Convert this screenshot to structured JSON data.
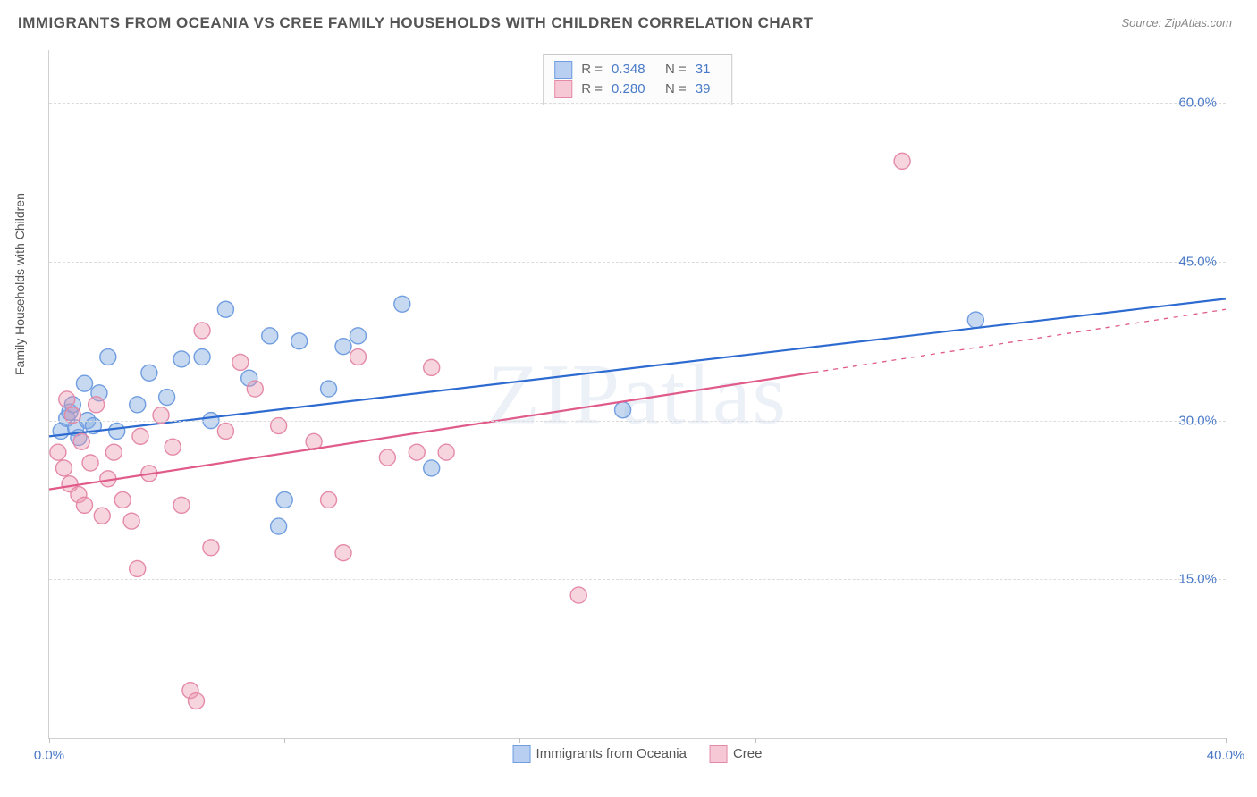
{
  "title": "IMMIGRANTS FROM OCEANIA VS CREE FAMILY HOUSEHOLDS WITH CHILDREN CORRELATION CHART",
  "source_label": "Source: ZipAtlas.com",
  "ylabel": "Family Households with Children",
  "watermark": "ZIPatlas",
  "chart": {
    "type": "scatter",
    "background_color": "#ffffff",
    "grid_color": "#dcdcdc",
    "axis_color": "#d0d0d0",
    "tick_label_color": "#4a7ac7",
    "title_fontsize": 17,
    "label_fontsize": 14,
    "tick_fontsize": 15,
    "xlim": [
      0,
      40
    ],
    "ylim": [
      0,
      65
    ],
    "xticks": [
      0,
      8,
      16,
      24,
      32,
      40
    ],
    "xtick_labels": [
      "0.0%",
      "",
      "",
      "",
      "",
      "40.0%"
    ],
    "yticks": [
      15,
      30,
      45,
      60
    ],
    "ytick_labels": [
      "15.0%",
      "30.0%",
      "45.0%",
      "60.0%"
    ],
    "series": [
      {
        "key": "oceania",
        "label": "Immigrants from Oceania",
        "marker_fill": "rgba(130,170,225,0.45)",
        "marker_stroke": "#6f9de0",
        "marker_radius": 9,
        "line_color": "#2e6bd1",
        "line_width": 2.2,
        "swatch_fill": "#b8cff1",
        "swatch_border": "#6f9de0",
        "r_value": "0.348",
        "n_value": "31",
        "trend": {
          "x1": 0,
          "y1": 28.5,
          "x2": 40,
          "y2": 41.5
        },
        "trend_dash_from": 40,
        "points": [
          [
            0.4,
            29.0
          ],
          [
            0.6,
            30.2
          ],
          [
            0.7,
            30.8
          ],
          [
            0.8,
            31.5
          ],
          [
            0.9,
            29.3
          ],
          [
            1.0,
            28.4
          ],
          [
            1.2,
            33.5
          ],
          [
            1.3,
            30.0
          ],
          [
            1.5,
            29.5
          ],
          [
            1.7,
            32.6
          ],
          [
            2.0,
            36.0
          ],
          [
            2.3,
            29.0
          ],
          [
            3.0,
            31.5
          ],
          [
            3.4,
            34.5
          ],
          [
            4.0,
            32.2
          ],
          [
            4.5,
            35.8
          ],
          [
            5.2,
            36.0
          ],
          [
            5.5,
            30.0
          ],
          [
            6.0,
            40.5
          ],
          [
            6.8,
            34.0
          ],
          [
            7.5,
            38.0
          ],
          [
            7.8,
            20.0
          ],
          [
            8.0,
            22.5
          ],
          [
            8.5,
            37.5
          ],
          [
            9.5,
            33.0
          ],
          [
            10.0,
            37.0
          ],
          [
            10.5,
            38.0
          ],
          [
            12.0,
            41.0
          ],
          [
            13.0,
            25.5
          ],
          [
            19.5,
            31.0
          ],
          [
            31.5,
            39.5
          ]
        ]
      },
      {
        "key": "cree",
        "label": "Cree",
        "marker_fill": "rgba(235,150,175,0.40)",
        "marker_stroke": "#e48aa8",
        "marker_radius": 9,
        "line_color": "#e05a8a",
        "line_width": 2.2,
        "swatch_fill": "#f6c8d6",
        "swatch_border": "#e48aa8",
        "r_value": "0.280",
        "n_value": "39",
        "trend": {
          "x1": 0,
          "y1": 23.5,
          "x2": 40,
          "y2": 40.5
        },
        "trend_dash_from": 26,
        "points": [
          [
            0.3,
            27.0
          ],
          [
            0.5,
            25.5
          ],
          [
            0.6,
            32.0
          ],
          [
            0.7,
            24.0
          ],
          [
            0.8,
            30.5
          ],
          [
            1.0,
            23.0
          ],
          [
            1.1,
            28.0
          ],
          [
            1.2,
            22.0
          ],
          [
            1.4,
            26.0
          ],
          [
            1.6,
            31.5
          ],
          [
            1.8,
            21.0
          ],
          [
            2.0,
            24.5
          ],
          [
            2.2,
            27.0
          ],
          [
            2.5,
            22.5
          ],
          [
            2.8,
            20.5
          ],
          [
            3.0,
            16.0
          ],
          [
            3.1,
            28.5
          ],
          [
            3.4,
            25.0
          ],
          [
            3.8,
            30.5
          ],
          [
            4.2,
            27.5
          ],
          [
            4.5,
            22.0
          ],
          [
            4.8,
            4.5
          ],
          [
            5.0,
            3.5
          ],
          [
            5.2,
            38.5
          ],
          [
            5.5,
            18.0
          ],
          [
            6.0,
            29.0
          ],
          [
            6.5,
            35.5
          ],
          [
            7.0,
            33.0
          ],
          [
            7.8,
            29.5
          ],
          [
            9.0,
            28.0
          ],
          [
            9.5,
            22.5
          ],
          [
            10.0,
            17.5
          ],
          [
            10.5,
            36.0
          ],
          [
            11.5,
            26.5
          ],
          [
            12.5,
            27.0
          ],
          [
            13.0,
            35.0
          ],
          [
            13.5,
            27.0
          ],
          [
            18.0,
            13.5
          ],
          [
            29.0,
            54.5
          ]
        ]
      }
    ],
    "legend_top_labels": {
      "r": "R =",
      "n": "N ="
    },
    "legend_bottom_order": [
      "oceania",
      "cree"
    ]
  }
}
